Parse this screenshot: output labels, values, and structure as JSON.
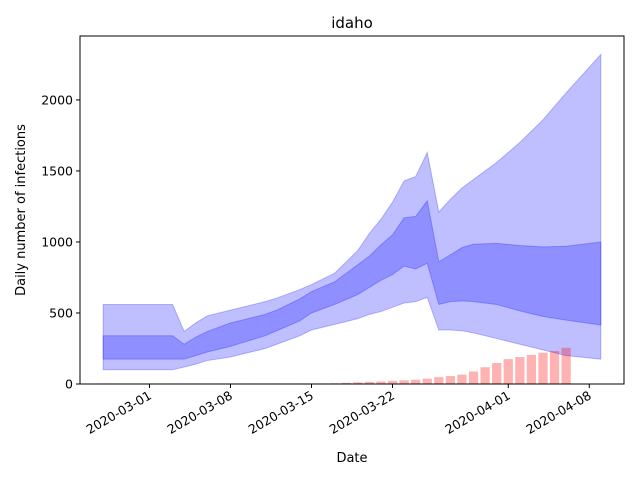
{
  "chart_data": {
    "type": "area",
    "title": "idaho",
    "xlabel": "Date",
    "ylabel": "Daily number of infections",
    "ylim": [
      0,
      2450
    ],
    "y_ticks": [
      0,
      500,
      1000,
      1500,
      2000
    ],
    "x_range": [
      "2020-02-24",
      "2020-04-11"
    ],
    "x_ticks": [
      "2020-03-01",
      "2020-03-08",
      "2020-03-15",
      "2020-03-22",
      "2020-04-01",
      "2020-04-08"
    ],
    "grid": false,
    "colors": {
      "band": "#0000ff",
      "bars": "#ff0000"
    },
    "series": [
      {
        "type": "band",
        "opacity": 0.25,
        "x": [
          "2020-02-26",
          "2020-03-03",
          "2020-03-04",
          "2020-03-05",
          "2020-03-06",
          "2020-03-08",
          "2020-03-09",
          "2020-03-11",
          "2020-03-12",
          "2020-03-14",
          "2020-03-15",
          "2020-03-17",
          "2020-03-19",
          "2020-03-20",
          "2020-03-21",
          "2020-03-22",
          "2020-03-23",
          "2020-03-24",
          "2020-03-25",
          "2020-03-26",
          "2020-03-27",
          "2020-03-28",
          "2020-03-29",
          "2020-03-31",
          "2020-04-02",
          "2020-04-04",
          "2020-04-06",
          "2020-04-09"
        ],
        "upper": [
          560,
          560,
          370,
          430,
          480,
          520,
          540,
          580,
          605,
          665,
          700,
          780,
          940,
          1060,
          1160,
          1280,
          1430,
          1460,
          1630,
          1210,
          1300,
          1380,
          1440,
          1560,
          1700,
          1860,
          2050,
          2320
        ],
        "lower": [
          100,
          100,
          120,
          140,
          165,
          190,
          210,
          250,
          280,
          340,
          380,
          420,
          460,
          490,
          510,
          540,
          570,
          580,
          610,
          380,
          380,
          375,
          360,
          320,
          280,
          240,
          200,
          175
        ]
      },
      {
        "type": "band",
        "opacity": 0.25,
        "x": [
          "2020-02-26",
          "2020-03-03",
          "2020-03-04",
          "2020-03-05",
          "2020-03-06",
          "2020-03-08",
          "2020-03-09",
          "2020-03-11",
          "2020-03-12",
          "2020-03-14",
          "2020-03-15",
          "2020-03-17",
          "2020-03-19",
          "2020-03-20",
          "2020-03-21",
          "2020-03-22",
          "2020-03-23",
          "2020-03-24",
          "2020-03-25",
          "2020-03-26",
          "2020-03-27",
          "2020-03-28",
          "2020-03-29",
          "2020-03-31",
          "2020-04-02",
          "2020-04-04",
          "2020-04-06",
          "2020-04-09"
        ],
        "upper": [
          340,
          340,
          280,
          330,
          370,
          430,
          450,
          490,
          520,
          600,
          650,
          720,
          840,
          900,
          980,
          1050,
          1170,
          1180,
          1290,
          860,
          910,
          960,
          985,
          990,
          975,
          965,
          970,
          1000
        ],
        "lower": [
          175,
          175,
          175,
          200,
          225,
          265,
          290,
          340,
          375,
          445,
          500,
          560,
          630,
          680,
          730,
          770,
          830,
          810,
          850,
          560,
          580,
          585,
          580,
          560,
          515,
          475,
          450,
          415
        ]
      },
      {
        "type": "bar",
        "opacity": 0.3,
        "x": [
          "2020-02-26",
          "2020-02-27",
          "2020-02-28",
          "2020-02-29",
          "2020-03-01",
          "2020-03-02",
          "2020-03-03",
          "2020-03-04",
          "2020-03-05",
          "2020-03-06",
          "2020-03-07",
          "2020-03-08",
          "2020-03-09",
          "2020-03-10",
          "2020-03-11",
          "2020-03-12",
          "2020-03-13",
          "2020-03-14",
          "2020-03-15",
          "2020-03-16",
          "2020-03-17",
          "2020-03-18",
          "2020-03-19",
          "2020-03-20",
          "2020-03-21",
          "2020-03-22",
          "2020-03-23",
          "2020-03-24",
          "2020-03-25",
          "2020-03-26",
          "2020-03-27",
          "2020-03-28",
          "2020-03-29",
          "2020-03-30",
          "2020-03-31",
          "2020-04-01",
          "2020-04-02",
          "2020-04-03",
          "2020-04-04",
          "2020-04-05",
          "2020-04-06"
        ],
        "values": [
          4,
          4,
          4,
          4,
          4,
          4,
          4,
          4,
          4,
          4,
          4,
          4,
          4,
          4,
          4,
          4,
          4,
          4,
          4,
          4,
          5,
          8,
          12,
          15,
          18,
          22,
          26,
          30,
          38,
          48,
          56,
          66,
          88,
          118,
          148,
          175,
          190,
          205,
          220,
          232,
          255
        ]
      }
    ]
  }
}
